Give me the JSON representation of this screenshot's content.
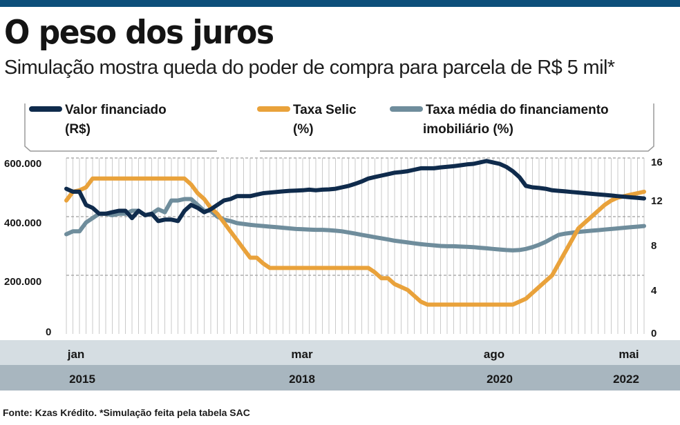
{
  "header": {
    "title": "O peso dos juros",
    "subtitle": "Simulação mostra queda do poder de compra para parcela de R$ 5 mil*"
  },
  "footer": {
    "source": "Fonte: Kzas Krédito. *Simulação feita pela tabela SAC"
  },
  "colors": {
    "top_bar": "#0d4f7a",
    "valor": "#0f2b4c",
    "selic": "#e9a23b",
    "media": "#6f8d9c",
    "axis_band_month": "#d5dde2",
    "axis_band_year": "#a8b6bf",
    "grid": "#bdbdbd"
  },
  "chart_data": {
    "type": "line",
    "x_tick_labels": {
      "months": [
        "jan",
        "mar",
        "ago",
        "mai"
      ],
      "years": [
        "2015",
        "2018",
        "2020",
        "2022"
      ]
    },
    "left_axis": {
      "ticks": [
        "600.000",
        "400.000",
        "200.000",
        "0"
      ],
      "range": [
        0,
        600000
      ]
    },
    "right_axis": {
      "ticks": [
        "16",
        "12",
        "8",
        "4",
        "0"
      ],
      "range": [
        0,
        16
      ]
    },
    "grid": true,
    "legend": [
      {
        "key": "valor",
        "lines": [
          "Valor financiado",
          "(R$)"
        ]
      },
      {
        "key": "selic",
        "lines": [
          "Taxa Selic",
          "(%)"
        ]
      },
      {
        "key": "media",
        "lines": [
          "Taxa média do financiamento",
          "imobiliário (%)"
        ]
      }
    ],
    "x": [
      "2015-01",
      "2015-02",
      "2015-03",
      "2015-04",
      "2015-05",
      "2015-06",
      "2015-07",
      "2015-08",
      "2015-09",
      "2015-10",
      "2015-11",
      "2015-12",
      "2016-01",
      "2016-02",
      "2016-03",
      "2016-04",
      "2016-05",
      "2016-06",
      "2016-07",
      "2016-08",
      "2016-09",
      "2016-10",
      "2016-11",
      "2016-12",
      "2017-01",
      "2017-02",
      "2017-03",
      "2017-04",
      "2017-05",
      "2017-06",
      "2017-07",
      "2017-08",
      "2017-09",
      "2017-10",
      "2017-11",
      "2017-12",
      "2018-01",
      "2018-02",
      "2018-03",
      "2018-04",
      "2018-05",
      "2018-06",
      "2018-07",
      "2018-08",
      "2018-09",
      "2018-10",
      "2018-11",
      "2018-12",
      "2019-01",
      "2019-02",
      "2019-03",
      "2019-04",
      "2019-05",
      "2019-06",
      "2019-07",
      "2019-08",
      "2019-09",
      "2019-10",
      "2019-11",
      "2019-12",
      "2020-01",
      "2020-02",
      "2020-03",
      "2020-04",
      "2020-05",
      "2020-06",
      "2020-07",
      "2020-08",
      "2020-09",
      "2020-10",
      "2020-11",
      "2020-12",
      "2021-01",
      "2021-02",
      "2021-03",
      "2021-04",
      "2021-05",
      "2021-06",
      "2021-07",
      "2021-08",
      "2021-09",
      "2021-10",
      "2021-11",
      "2021-12",
      "2022-01",
      "2022-02",
      "2022-03",
      "2022-04",
      "2022-05"
    ],
    "series": [
      {
        "key": "valor",
        "axis": "left",
        "values": [
          495000,
          485000,
          485000,
          440000,
          430000,
          410000,
          410000,
          415000,
          420000,
          420000,
          395000,
          420000,
          405000,
          410000,
          385000,
          390000,
          390000,
          385000,
          420000,
          440000,
          430000,
          415000,
          425000,
          440000,
          455000,
          460000,
          470000,
          470000,
          470000,
          475000,
          480000,
          482000,
          484000,
          486000,
          488000,
          489000,
          490000,
          492000,
          490000,
          492000,
          493000,
          495000,
          500000,
          505000,
          512000,
          520000,
          530000,
          535000,
          540000,
          545000,
          550000,
          552000,
          555000,
          560000,
          565000,
          565000,
          565000,
          568000,
          570000,
          572000,
          575000,
          578000,
          580000,
          585000,
          590000,
          585000,
          580000,
          570000,
          555000,
          535000,
          505000,
          500000,
          498000,
          495000,
          490000,
          488000,
          486000,
          484000,
          482000,
          480000,
          478000,
          476000,
          474000,
          472000,
          470000,
          468000,
          466000,
          464000,
          462000
        ]
      },
      {
        "key": "selic",
        "axis": "left",
        "values": [
          455000,
          485000,
          490000,
          500000,
          530000,
          530000,
          530000,
          530000,
          530000,
          530000,
          530000,
          530000,
          530000,
          530000,
          530000,
          530000,
          530000,
          530000,
          530000,
          510000,
          480000,
          460000,
          430000,
          410000,
          380000,
          350000,
          320000,
          290000,
          260000,
          260000,
          240000,
          225000,
          225000,
          225000,
          225000,
          225000,
          225000,
          225000,
          225000,
          225000,
          225000,
          225000,
          225000,
          225000,
          225000,
          225000,
          225000,
          210000,
          190000,
          190000,
          170000,
          160000,
          150000,
          130000,
          110000,
          100000,
          100000,
          100000,
          100000,
          100000,
          100000,
          100000,
          100000,
          100000,
          100000,
          100000,
          100000,
          100000,
          100000,
          110000,
          120000,
          140000,
          160000,
          180000,
          200000,
          240000,
          280000,
          320000,
          360000,
          380000,
          400000,
          420000,
          440000,
          455000,
          465000,
          470000,
          475000,
          480000,
          485000
        ]
      },
      {
        "key": "media",
        "axis": "left",
        "values": [
          340000,
          350000,
          350000,
          380000,
          395000,
          410000,
          410000,
          405000,
          410000,
          410000,
          420000,
          420000,
          405000,
          410000,
          425000,
          415000,
          455000,
          455000,
          460000,
          460000,
          440000,
          420000,
          420000,
          400000,
          390000,
          385000,
          378000,
          375000,
          372000,
          370000,
          368000,
          366000,
          364000,
          362000,
          360000,
          358000,
          357000,
          356000,
          355000,
          355000,
          354000,
          352000,
          350000,
          346000,
          342000,
          338000,
          334000,
          330000,
          326000,
          322000,
          318000,
          315000,
          312000,
          309000,
          306000,
          304000,
          302000,
          300000,
          299000,
          299000,
          298000,
          297000,
          296000,
          294000,
          292000,
          290000,
          288000,
          286000,
          285000,
          286000,
          290000,
          296000,
          304000,
          314000,
          326000,
          338000,
          342000,
          345000,
          348000,
          350000,
          352000,
          354000,
          356000,
          358000,
          360000,
          362000,
          364000,
          366000,
          368000
        ]
      }
    ]
  }
}
